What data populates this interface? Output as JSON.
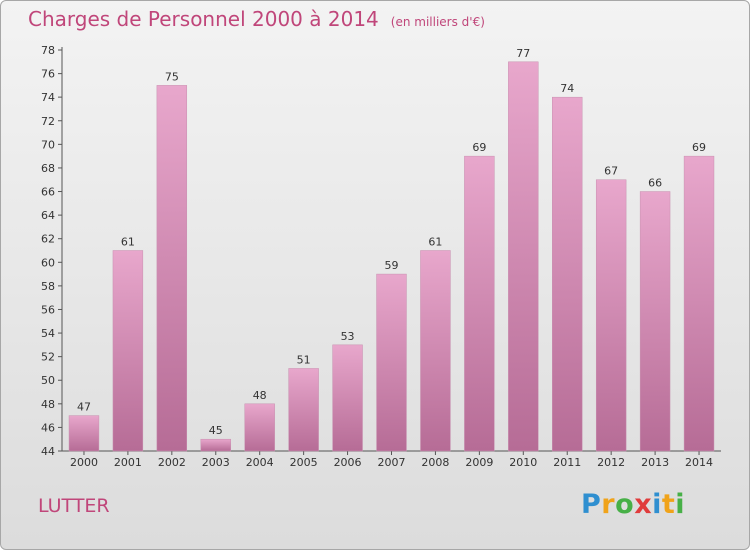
{
  "title": "Charges de Personnel 2000 à 2014",
  "subtitle": "(en milliers d'€)",
  "commune": "LUTTER",
  "logo": {
    "letters": [
      {
        "ch": "P",
        "color": "#2f8fd0"
      },
      {
        "ch": "r",
        "color": "#f0a31a"
      },
      {
        "ch": "o",
        "color": "#47b047"
      },
      {
        "ch": "x",
        "color": "#e03c3c"
      },
      {
        "ch": "i",
        "color": "#2f8fd0"
      },
      {
        "ch": "t",
        "color": "#f0a31a"
      },
      {
        "ch": "i",
        "color": "#47b047"
      }
    ]
  },
  "chart_data": {
    "type": "bar",
    "title": "Charges de Personnel 2000 à 2014",
    "subtitle": "(en milliers d'€)",
    "categories": [
      "2000",
      "2001",
      "2002",
      "2003",
      "2004",
      "2005",
      "2006",
      "2007",
      "2008",
      "2009",
      "2010",
      "2011",
      "2012",
      "2013",
      "2014"
    ],
    "values": [
      47,
      61,
      75,
      45,
      48,
      51,
      53,
      59,
      61,
      69,
      77,
      74,
      67,
      66,
      69
    ],
    "ylim": [
      44,
      78
    ],
    "yticks": [
      44,
      46,
      48,
      50,
      52,
      54,
      56,
      58,
      60,
      62,
      64,
      66,
      68,
      70,
      72,
      74,
      76,
      78
    ],
    "grid": false,
    "legend": "none",
    "bar_color_top": "#e8a7cc",
    "bar_color_bottom": "#b66c96"
  }
}
